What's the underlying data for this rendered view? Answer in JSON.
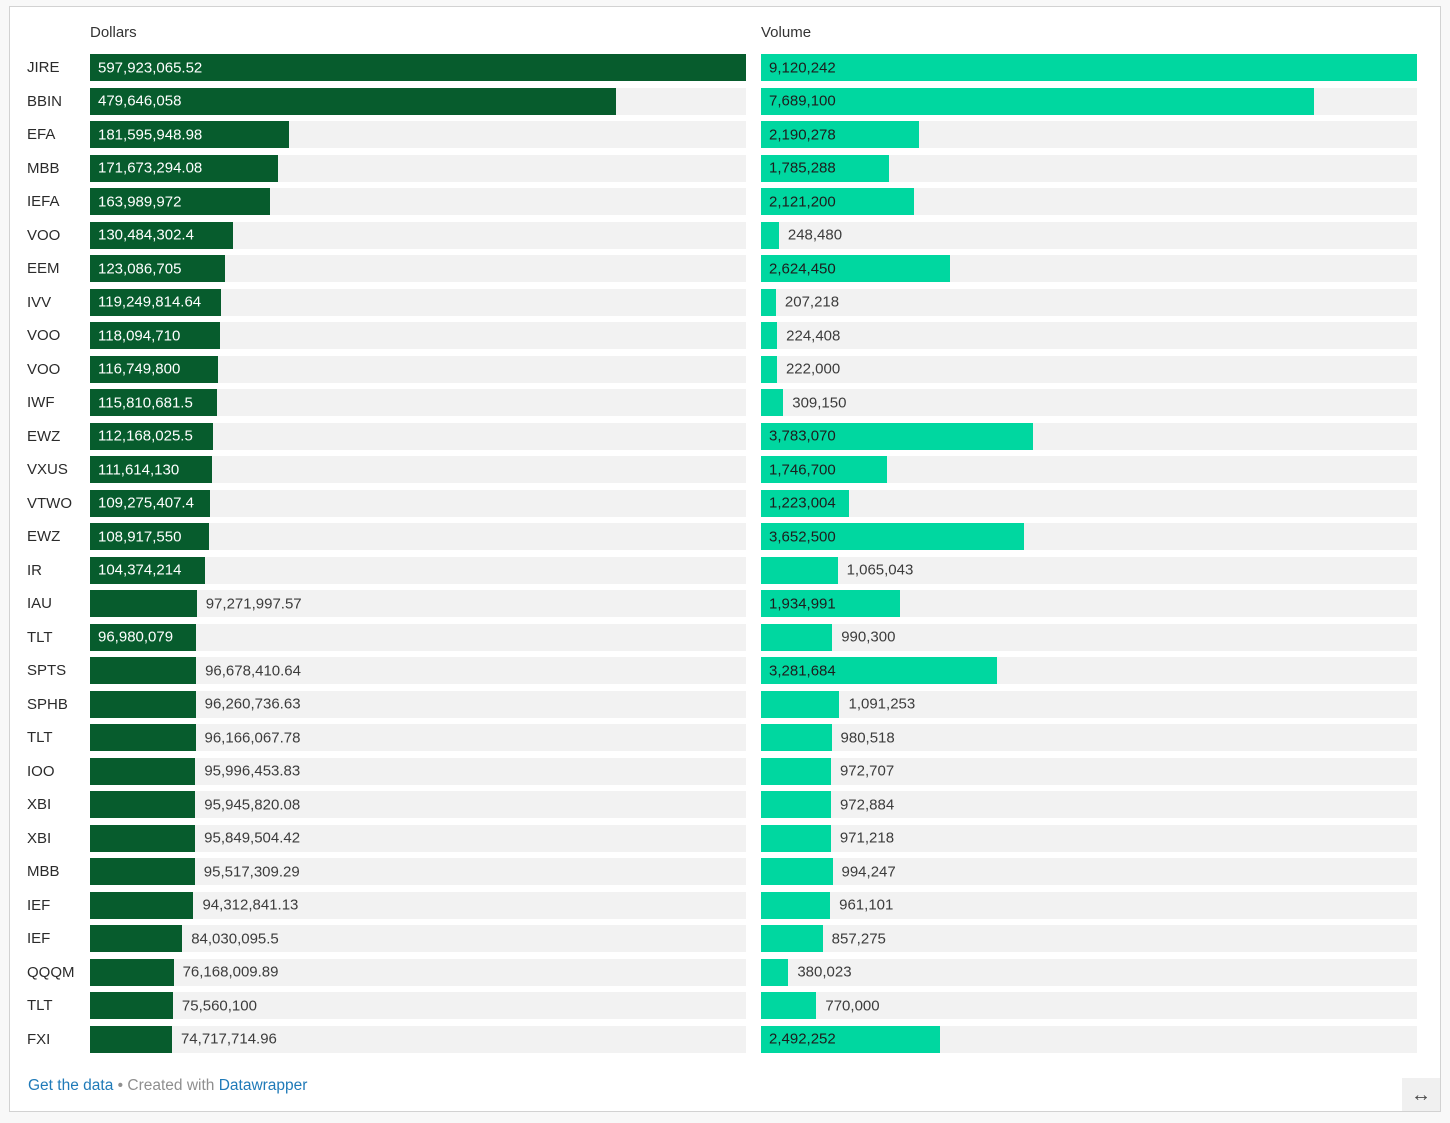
{
  "chart_data": {
    "type": "bar",
    "orientation": "horizontal",
    "title": "",
    "grid": false,
    "legend_position": "column-headers",
    "categories": [
      "JIRE",
      "BBIN",
      "EFA",
      "MBB",
      "IEFA",
      "VOO",
      "EEM",
      "IVV",
      "VOO",
      "VOO",
      "IWF",
      "EWZ",
      "VXUS",
      "VTWO",
      "EWZ",
      "IR",
      "IAU",
      "TLT",
      "SPTS",
      "SPHB",
      "TLT",
      "IOO",
      "XBI",
      "XBI",
      "MBB",
      "IEF",
      "IEF",
      "QQQM",
      "TLT",
      "FXI"
    ],
    "series": [
      {
        "key": "dollars",
        "name": "Dollars",
        "color": "#075c2d",
        "inside_text_color": "#ffffff",
        "axis_range": [
          0,
          597923065.52
        ],
        "values": [
          597923065.52,
          479646058,
          181595948.98,
          171673294.08,
          163989972,
          130484302.4,
          123086705,
          119249814.64,
          118094710,
          116749800,
          115810681.5,
          112168025.5,
          111614130,
          109275407.4,
          108917550,
          104374214,
          97271997.57,
          96980079,
          96678410.64,
          96260736.63,
          96166067.78,
          95996453.83,
          95945820.08,
          95849504.42,
          95517309.29,
          94312841.13,
          84030095.5,
          76168009.89,
          75560100,
          74717714.96
        ],
        "labels": [
          "597,923,065.52",
          "479,646,058",
          "181,595,948.98",
          "171,673,294.08",
          "163,989,972",
          "130,484,302.4",
          "123,086,705",
          "119,249,814.64",
          "118,094,710",
          "116,749,800",
          "115,810,681.5",
          "112,168,025.5",
          "111,614,130",
          "109,275,407.4",
          "108,917,550",
          "104,374,214",
          "97,271,997.57",
          "96,980,079",
          "96,678,410.64",
          "96,260,736.63",
          "96,166,067.78",
          "95,996,453.83",
          "95,945,820.08",
          "95,849,504.42",
          "95,517,309.29",
          "94,312,841.13",
          "84,030,095.5",
          "76,168,009.89",
          "75,560,100",
          "74,717,714.96"
        ],
        "label_inside": [
          true,
          true,
          true,
          true,
          true,
          true,
          true,
          true,
          true,
          true,
          true,
          true,
          true,
          true,
          true,
          true,
          false,
          true,
          false,
          false,
          false,
          false,
          false,
          false,
          false,
          false,
          false,
          false,
          false,
          false
        ]
      },
      {
        "key": "volume",
        "name": "Volume",
        "color": "#00d7a0",
        "inside_text_color": "#1d1d1d",
        "axis_range": [
          0,
          9120242
        ],
        "values": [
          9120242,
          7689100,
          2190278,
          1785288,
          2121200,
          248480,
          2624450,
          207218,
          224408,
          222000,
          309150,
          3783070,
          1746700,
          1223004,
          3652500,
          1065043,
          1934991,
          990300,
          3281684,
          1091253,
          980518,
          972707,
          972884,
          971218,
          994247,
          961101,
          857275,
          380023,
          770000,
          2492252
        ],
        "labels": [
          "9,120,242",
          "7,689,100",
          "2,190,278",
          "1,785,288",
          "2,121,200",
          "248,480",
          "2,624,450",
          "207,218",
          "224,408",
          "222,000",
          "309,150",
          "3,783,070",
          "1,746,700",
          "1,223,004",
          "3,652,500",
          "1,065,043",
          "1,934,991",
          "990,300",
          "3,281,684",
          "1,091,253",
          "980,518",
          "972,707",
          "972,884",
          "971,218",
          "994,247",
          "961,101",
          "857,275",
          "380,023",
          "770,000",
          "2,492,252"
        ],
        "label_inside": [
          true,
          true,
          true,
          true,
          true,
          false,
          true,
          false,
          false,
          false,
          false,
          true,
          true,
          true,
          true,
          false,
          true,
          false,
          true,
          false,
          false,
          false,
          false,
          false,
          false,
          false,
          false,
          false,
          false,
          true
        ]
      }
    ]
  },
  "footer": {
    "get_the_data": "Get the data",
    "separator": "•",
    "created_with": "Created with",
    "brand": "Datawrapper"
  },
  "icons": {
    "resize_glyph": "↔"
  },
  "colors": {
    "dollars_bar": "#075c2d",
    "volume_bar": "#00d7a0",
    "track": "#f2f2f2",
    "card_bg": "#ffffff",
    "page_bg": "#f8f8f8",
    "card_border": "#d2d2d2",
    "link": "#1f7ab8",
    "muted_text": "#8f8f8f",
    "outside_value_text": "#3c3c3c"
  }
}
